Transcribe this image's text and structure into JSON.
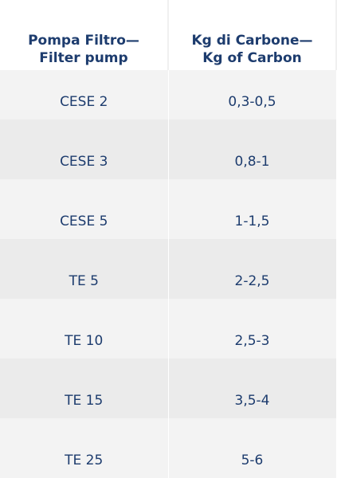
{
  "table": {
    "header": [
      "Pompa Filtro—\nFilter pump",
      "Kg di Carbone—\nKg of Carbon"
    ],
    "rows": [
      [
        "CESE 2",
        "0,3-0,5"
      ],
      [
        "CESE 3",
        "0,8-1"
      ],
      [
        "CESE 5",
        "1-1,5"
      ],
      [
        "TE 5",
        "2-2,5"
      ],
      [
        "TE 10",
        "2,5-3"
      ],
      [
        "TE 15",
        "3,5-4"
      ],
      [
        "TE 25",
        "5-6"
      ]
    ]
  }
}
